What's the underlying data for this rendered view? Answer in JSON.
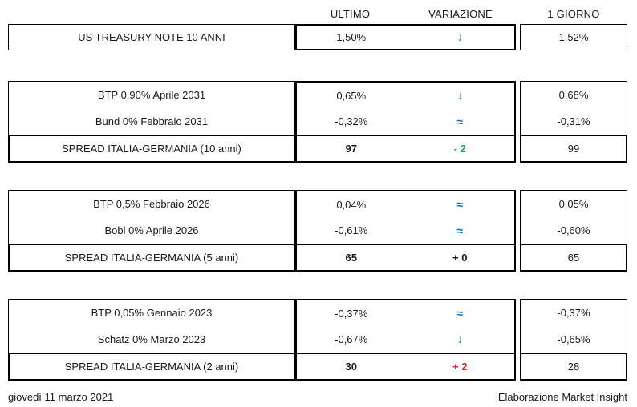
{
  "header": {
    "columns": [
      {
        "label": "ULTIMO"
      },
      {
        "label": "VARIAZIONE"
      },
      {
        "label": "1 GIORNO"
      }
    ]
  },
  "colors": {
    "green": "#23A05B",
    "blue": "#0070C0",
    "red": "#D9222E",
    "black": "#1a1a1a"
  },
  "sections": [
    {
      "rows": [
        {
          "label": "US TREASURY NOTE 10 ANNI",
          "ultimo": "1,50%",
          "variazione": "↓",
          "var_color": "green",
          "giorno": "1,52%"
        }
      ],
      "spread": null
    },
    {
      "rows": [
        {
          "label": "BTP 0,90% Aprile 2031",
          "ultimo": "0,65%",
          "variazione": "↓",
          "var_color": "green",
          "giorno": "0,68%"
        },
        {
          "label": "Bund 0% Febbraio 2031",
          "ultimo": "-0,32%",
          "variazione": "≈",
          "var_color": "blue",
          "giorno": "-0,31%"
        }
      ],
      "spread": {
        "label": "SPREAD ITALIA-GERMANIA (10 anni)",
        "ultimo": "97",
        "variazione": "- 2",
        "var_color": "green",
        "giorno": "99"
      }
    },
    {
      "rows": [
        {
          "label": "BTP 0,5% Febbraio 2026",
          "ultimo": "0,04%",
          "variazione": "≈",
          "var_color": "blue",
          "giorno": "0,05%"
        },
        {
          "label": "Bobl 0% Aprile 2026",
          "ultimo": "-0,61%",
          "variazione": "≈",
          "var_color": "blue",
          "giorno": "-0,60%"
        }
      ],
      "spread": {
        "label": "SPREAD ITALIA-GERMANIA (5 anni)",
        "ultimo": "65",
        "variazione": "+ 0",
        "var_color": "black",
        "giorno": "65"
      }
    },
    {
      "rows": [
        {
          "label": "BTP 0,05% Gennaio 2023",
          "ultimo": "-0,37%",
          "variazione": "≈",
          "var_color": "blue",
          "giorno": "-0,37%"
        },
        {
          "label": "Schatz 0% Marzo 2023",
          "ultimo": "-0,67%",
          "variazione": "↓",
          "var_color": "green",
          "giorno": "-0,65%"
        }
      ],
      "spread": {
        "label": "SPREAD ITALIA-GERMANIA (2 anni)",
        "ultimo": "30",
        "variazione": "+ 2",
        "var_color": "red",
        "giorno": "28"
      }
    }
  ],
  "footer": {
    "date": "giovedì 11 marzo 2021",
    "credit": "Elaborazione Market Insight"
  }
}
